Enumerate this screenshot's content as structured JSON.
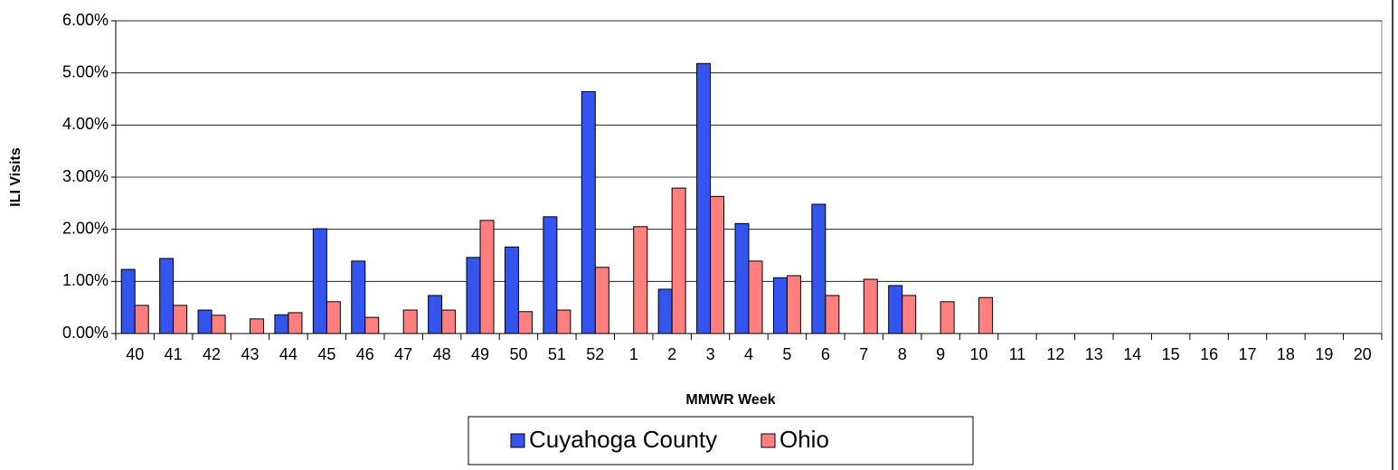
{
  "chart_data": {
    "type": "bar",
    "xlabel": "MMWR Week",
    "ylabel": "ILI Visits",
    "categories": [
      "40",
      "41",
      "42",
      "43",
      "44",
      "45",
      "46",
      "47",
      "48",
      "49",
      "50",
      "51",
      "52",
      "1",
      "2",
      "3",
      "4",
      "5",
      "6",
      "7",
      "8",
      "9",
      "10",
      "11",
      "12",
      "13",
      "14",
      "15",
      "16",
      "17",
      "18",
      "19",
      "20"
    ],
    "series": [
      {
        "name": "Cuyahoga County",
        "color": "#3355ee",
        "values": [
          1.23,
          1.44,
          0.45,
          null,
          0.36,
          2.01,
          1.39,
          null,
          0.73,
          1.46,
          1.66,
          2.24,
          4.64,
          null,
          0.85,
          5.18,
          2.11,
          1.07,
          2.48,
          null,
          0.92,
          null,
          null,
          null,
          null,
          null,
          null,
          null,
          null,
          null,
          null,
          null,
          null
        ]
      },
      {
        "name": "Ohio",
        "color": "#ff7f7f",
        "values": [
          0.54,
          0.54,
          0.35,
          0.28,
          0.4,
          0.61,
          0.31,
          0.45,
          0.45,
          2.17,
          0.42,
          0.45,
          1.27,
          2.05,
          2.79,
          2.63,
          1.39,
          1.11,
          0.73,
          1.04,
          0.73,
          0.61,
          0.69,
          null,
          null,
          null,
          null,
          null,
          null,
          null,
          null,
          null,
          null
        ]
      }
    ],
    "ylim": [
      0,
      6
    ],
    "yticks": [
      {
        "value": 0,
        "label": "0.00%"
      },
      {
        "value": 1,
        "label": "1.00%"
      },
      {
        "value": 2,
        "label": "2.00%"
      },
      {
        "value": 3,
        "label": "3.00%"
      },
      {
        "value": 4,
        "label": "4.00%"
      },
      {
        "value": 5,
        "label": "5.00%"
      },
      {
        "value": 6,
        "label": "6.00%"
      }
    ],
    "grid": true,
    "legend": "bottom"
  }
}
